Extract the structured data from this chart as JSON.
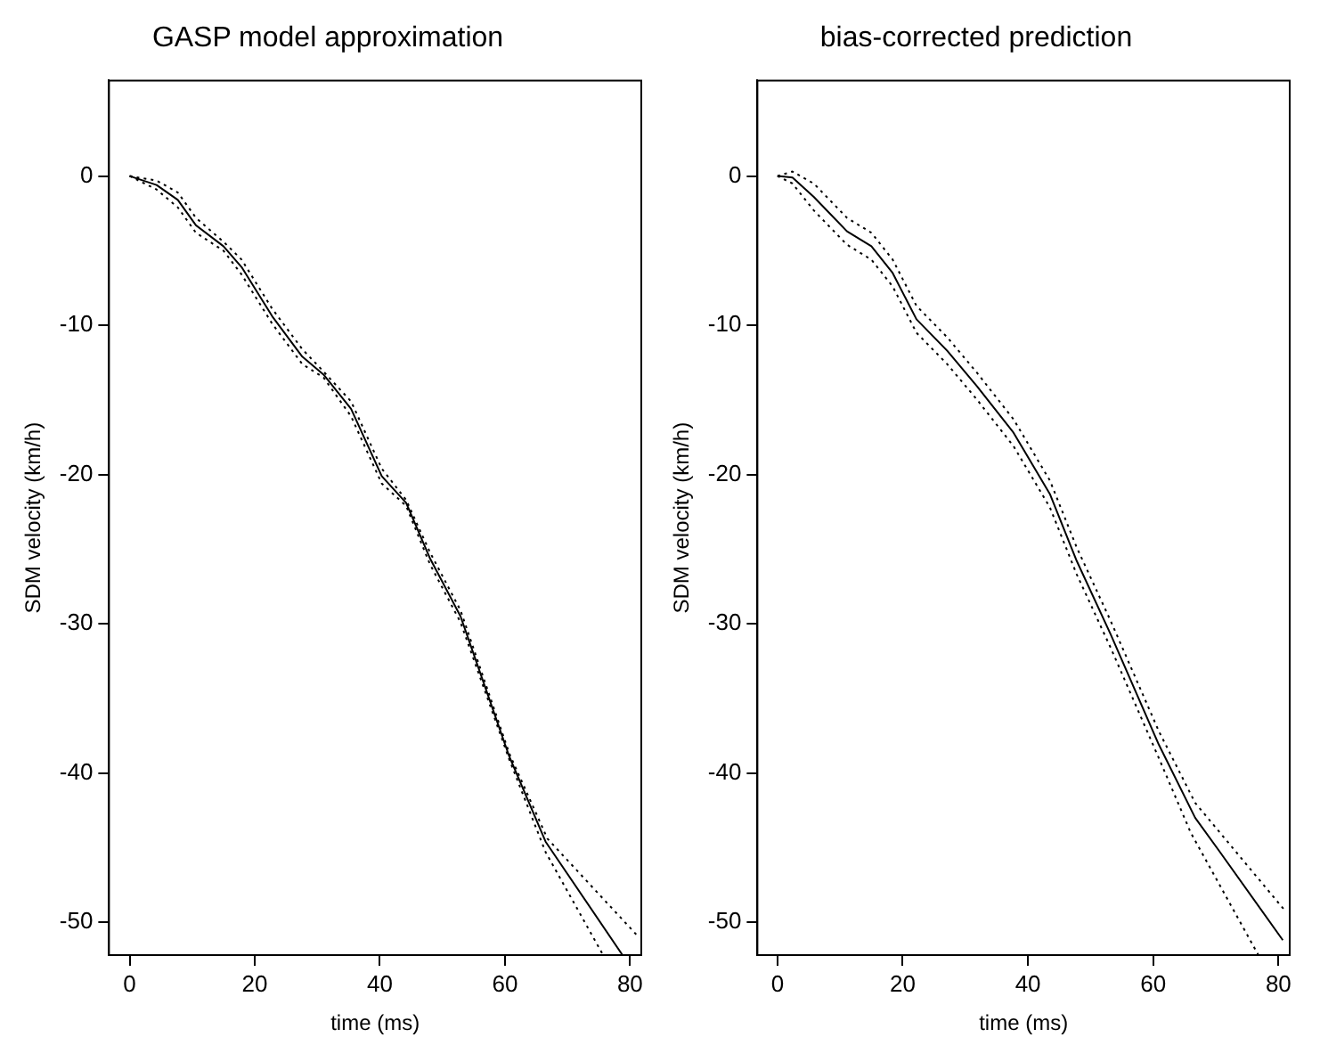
{
  "chart_data": [
    {
      "type": "line",
      "title": "GASP model approximation",
      "xlabel": "time (ms)",
      "ylabel": "SDM velocity (km/h)",
      "xlim": [
        -3.3,
        81.8
      ],
      "ylim": [
        -52.2,
        6.4
      ],
      "xticks": [
        0,
        20,
        40,
        60,
        80
      ],
      "yticks": [
        -50,
        -40,
        -30,
        -20,
        -10,
        0
      ],
      "grid": false,
      "legend": false,
      "marker": "none",
      "series": [
        {
          "color": "#000000",
          "line_style": "solid",
          "x": [
            0,
            4.3,
            7.7,
            10.6,
            15,
            17.9,
            22.8,
            27.6,
            31,
            35.4,
            40.3,
            44.2,
            48,
            52.9,
            60.7,
            66.5,
            78.8
          ],
          "values": [
            0,
            -0.6,
            -1.6,
            -3.3,
            -4.7,
            -6.1,
            -9.4,
            -12.1,
            -13.3,
            -15.6,
            -20.1,
            -21.9,
            -25.6,
            -29.5,
            -38.9,
            -44.6,
            -52.2
          ]
        },
        {
          "color": "#000000",
          "line_style": "dotted",
          "x": [
            0,
            4.3,
            7.7,
            10.6,
            15,
            17.9,
            22.8,
            27.6,
            31,
            35.4,
            40.3,
            44.2,
            48,
            52.9,
            60.7,
            66.8,
            81.4
          ],
          "values": [
            0,
            -0.3,
            -1.1,
            -2.8,
            -4.4,
            -5.6,
            -8.9,
            -11.6,
            -13.1,
            -15.1,
            -19.6,
            -21.7,
            -25.2,
            -29.1,
            -38.7,
            -44.4,
            -51
          ]
        },
        {
          "color": "#000000",
          "line_style": "dotted",
          "x": [
            0,
            4.3,
            7.7,
            10.6,
            15,
            17.9,
            22.8,
            27.6,
            31,
            35.4,
            40.3,
            44.2,
            48,
            52.9,
            60.7,
            66.5,
            75.7
          ],
          "values": [
            0,
            -0.9,
            -2.1,
            -3.8,
            -5,
            -6.6,
            -9.9,
            -12.6,
            -13.5,
            -16.1,
            -20.6,
            -22.1,
            -26,
            -29.9,
            -39.1,
            -45.3,
            -52.2
          ]
        }
      ]
    },
    {
      "type": "line",
      "title": "bias-corrected prediction",
      "xlabel": "time (ms)",
      "ylabel": "SDM velocity (km/h)",
      "xlim": [
        -3.2,
        81.8
      ],
      "ylim": [
        -52.2,
        6.4
      ],
      "xticks": [
        0,
        20,
        40,
        60,
        80
      ],
      "yticks": [
        -50,
        -40,
        -30,
        -20,
        -10,
        0
      ],
      "grid": false,
      "legend": false,
      "marker": "none",
      "series": [
        {
          "color": "#000000",
          "line_style": "solid",
          "x": [
            0,
            2.4,
            5.8,
            11.1,
            15,
            18.4,
            22.2,
            27.1,
            31.9,
            37.7,
            43.5,
            47.8,
            53.2,
            60.9,
            66.7,
            70.5,
            80.7
          ],
          "values": [
            0,
            -0.1,
            -1.4,
            -3.7,
            -4.7,
            -6.5,
            -9.6,
            -11.7,
            -14.1,
            -17.2,
            -21.3,
            -25.8,
            -30.7,
            -38.1,
            -43,
            -45.2,
            -51.2
          ]
        },
        {
          "color": "#000000",
          "line_style": "dotted",
          "x": [
            0,
            2.4,
            5.8,
            11.1,
            15,
            18.4,
            22.2,
            27.1,
            31.9,
            37.7,
            43.5,
            47.8,
            53.2,
            60.9,
            66.7,
            81.2
          ],
          "values": [
            0,
            0.3,
            -0.5,
            -2.8,
            -3.8,
            -5.6,
            -8.7,
            -10.8,
            -13.2,
            -16.3,
            -20.4,
            -24.9,
            -29.8,
            -37.2,
            -42,
            -49.3
          ]
        },
        {
          "color": "#000000",
          "line_style": "dotted",
          "x": [
            0,
            2.4,
            5.8,
            11.1,
            15,
            18.4,
            22.2,
            27.1,
            31.9,
            37.7,
            43.5,
            47.8,
            53.2,
            60.9,
            66,
            76.8
          ],
          "values": [
            0,
            -0.5,
            -2.3,
            -4.6,
            -5.6,
            -7.4,
            -10.5,
            -12.6,
            -15,
            -18.1,
            -22.2,
            -26.7,
            -31.6,
            -39,
            -44,
            -52.2
          ]
        }
      ]
    }
  ]
}
